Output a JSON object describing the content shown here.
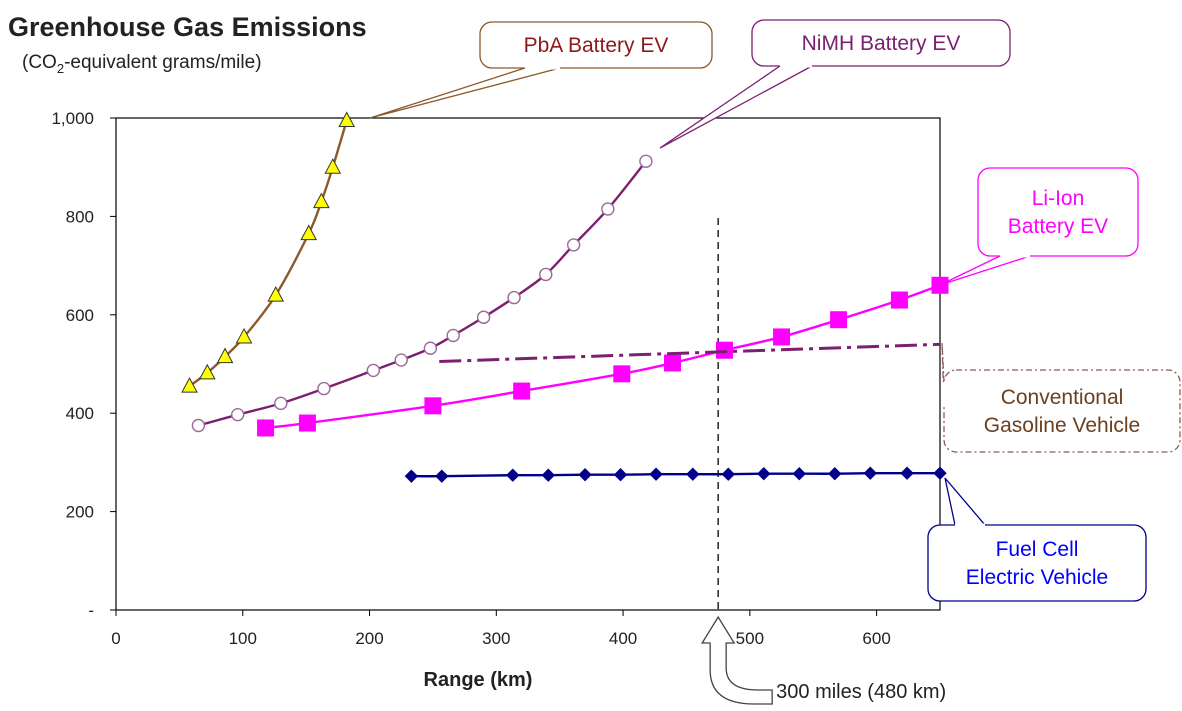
{
  "chart_data": {
    "type": "line",
    "title": "Greenhouse Gas Emissions",
    "subtitle": {
      "before": "(CO",
      "sub": "2",
      "after": "-equivalent grams/mile)"
    },
    "xlabel": "Range (km)",
    "ylabel": "",
    "xlim": [
      0,
      650
    ],
    "ylim": [
      0,
      1000
    ],
    "x_ticks": [
      0,
      100,
      200,
      300,
      400,
      500,
      600
    ],
    "x_tick_labels": [
      "0",
      "100",
      "200",
      "300",
      "400",
      "500",
      "600"
    ],
    "y_ticks": [
      0,
      200,
      400,
      600,
      800,
      1000
    ],
    "y_tick_labels": [
      "-",
      "200",
      "400",
      "600",
      "800",
      "1,000"
    ],
    "grid": false,
    "series": [
      {
        "name": "PbA Battery EV",
        "label_lines": [
          "PbA Battery EV"
        ],
        "color": "#8b5a2b",
        "text_color": "#8b1a1a",
        "marker": "triangle",
        "marker_fill": "#ffff00",
        "marker_stroke": "#333333",
        "x": [
          58,
          72,
          86,
          101,
          126,
          152,
          162,
          171,
          182
        ],
        "y": [
          455,
          482,
          515,
          555,
          640,
          765,
          830,
          900,
          995
        ]
      },
      {
        "name": "NiMH Battery EV",
        "label_lines": [
          "NiMH Battery EV"
        ],
        "color": "#7b2070",
        "text_color": "#7b2070",
        "marker": "circle",
        "marker_fill": "#ffffff",
        "marker_stroke": "#9a6a9a",
        "x": [
          65,
          96,
          130,
          164,
          203,
          225,
          248,
          266,
          290,
          314,
          339,
          361,
          388,
          418
        ],
        "y": [
          375,
          397,
          420,
          450,
          487,
          508,
          532,
          558,
          595,
          635,
          682,
          742,
          815,
          912
        ]
      },
      {
        "name": "Li-Ion Battery EV",
        "label_lines": [
          "Li-Ion",
          "Battery EV"
        ],
        "color": "#ff00ff",
        "text_color": "#ff00ff",
        "marker": "square",
        "marker_fill": "#ff00ff",
        "marker_stroke": "#ff00ff",
        "x": [
          118,
          151,
          250,
          320,
          399,
          439,
          480,
          525,
          570,
          618,
          650
        ],
        "y": [
          370,
          380,
          415,
          445,
          480,
          502,
          528,
          555,
          590,
          630,
          660
        ]
      },
      {
        "name": "Conventional Gasoline Vehicle",
        "label_lines": [
          "Conventional",
          "Gasoline Vehicle"
        ],
        "color": "#7b2070",
        "text_color": "#6b4020",
        "marker": "none",
        "dash": "dashdot",
        "x": [
          255,
          650
        ],
        "y": [
          505,
          540
        ]
      },
      {
        "name": "Fuel Cell Electric Vehicle",
        "label_lines": [
          "Fuel Cell",
          "Electric Vehicle"
        ],
        "color": "#00008b",
        "text_color": "#0000ff",
        "marker": "diamond",
        "marker_fill": "#00008b",
        "marker_stroke": "#00008b",
        "x": [
          233,
          257,
          313,
          341,
          370,
          398,
          426,
          455,
          483,
          511,
          539,
          567,
          595,
          624,
          650
        ],
        "y": [
          272,
          272,
          274,
          274,
          275,
          275,
          276,
          276,
          276,
          277,
          277,
          277,
          278,
          278,
          278
        ]
      }
    ],
    "annotations": [
      {
        "text": "300 miles (480 km)",
        "x": 475,
        "type": "vertical-dashed-line"
      }
    ]
  }
}
